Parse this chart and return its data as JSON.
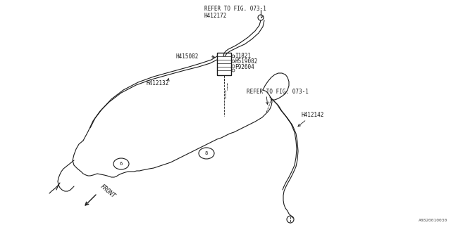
{
  "bg_color": "#ffffff",
  "line_color": "#1a1a1a",
  "text_color": "#1a1a1a",
  "watermark": "A0820010030",
  "labels": {
    "refer1": "REFER TO FIG. 073-1",
    "h412172": "H412172",
    "h415082": "H415082",
    "i1821": "I1821",
    "h519082": "H519082",
    "f92604": "F92604",
    "h412132": "H412132",
    "refer2": "REFER TO FIG. 073-1",
    "h412142": "H412142",
    "front": "FRONT"
  },
  "font_size": 6.0
}
